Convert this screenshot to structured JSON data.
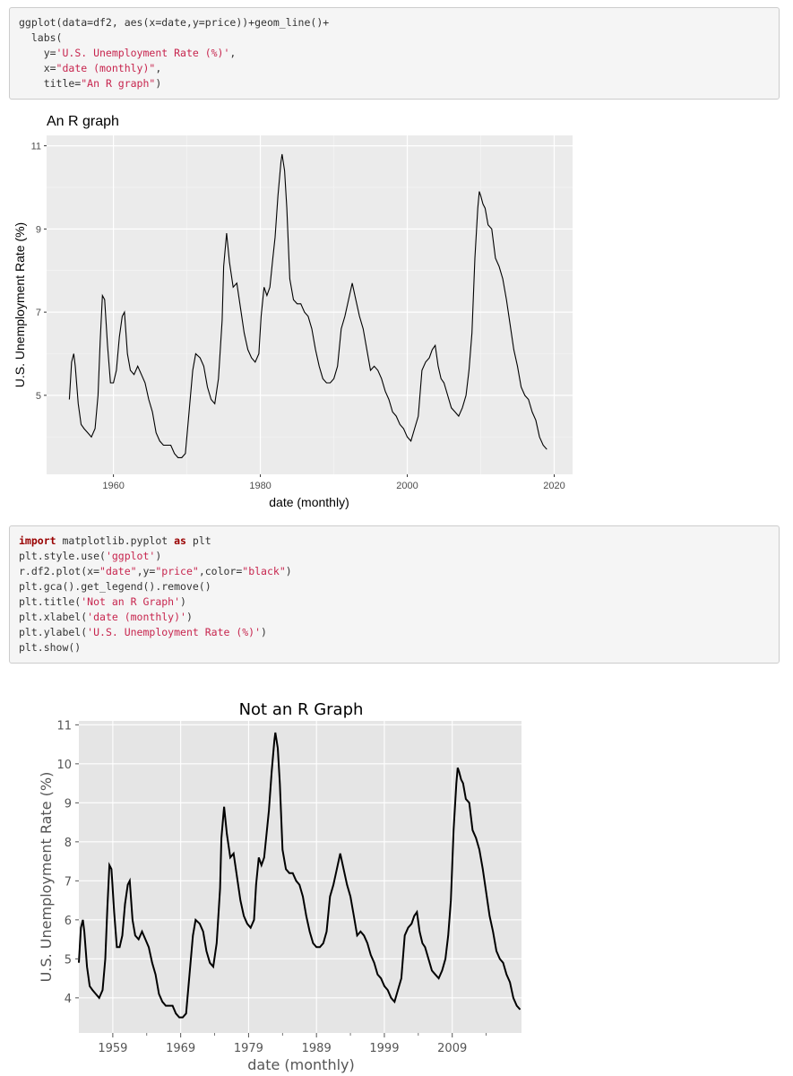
{
  "code_block_1": {
    "lines": [
      [
        {
          "t": "ggplot(data=df2, aes(x=date,y=price))+geom_line()+",
          "c": ""
        }
      ],
      [
        {
          "t": "  labs(",
          "c": ""
        }
      ],
      [
        {
          "t": "    y=",
          "c": ""
        },
        {
          "t": "'U.S. Unemployment Rate (%)'",
          "c": "str"
        },
        {
          "t": ",",
          "c": ""
        }
      ],
      [
        {
          "t": "    x=",
          "c": ""
        },
        {
          "t": "\"date (monthly)\"",
          "c": "str"
        },
        {
          "t": ",",
          "c": ""
        }
      ],
      [
        {
          "t": "    title=",
          "c": ""
        },
        {
          "t": "\"An R graph\"",
          "c": "str"
        },
        {
          "t": ")",
          "c": ""
        }
      ]
    ]
  },
  "code_block_2": {
    "lines": [
      [
        {
          "t": "import",
          "c": "kw"
        },
        {
          "t": " matplotlib.pyplot ",
          "c": ""
        },
        {
          "t": "as",
          "c": "kw"
        },
        {
          "t": " plt",
          "c": ""
        }
      ],
      [
        {
          "t": "plt.style.use(",
          "c": ""
        },
        {
          "t": "'ggplot'",
          "c": "str"
        },
        {
          "t": ")",
          "c": ""
        }
      ],
      [
        {
          "t": "r.df2.plot(x=",
          "c": ""
        },
        {
          "t": "\"date\"",
          "c": "str"
        },
        {
          "t": ",y=",
          "c": ""
        },
        {
          "t": "\"price\"",
          "c": "str"
        },
        {
          "t": ",color=",
          "c": ""
        },
        {
          "t": "\"black\"",
          "c": "str"
        },
        {
          "t": ")",
          "c": ""
        }
      ],
      [
        {
          "t": "plt.gca().get_legend().remove()",
          "c": ""
        }
      ],
      [
        {
          "t": "plt.title(",
          "c": ""
        },
        {
          "t": "'Not an R Graph'",
          "c": "str"
        },
        {
          "t": ")",
          "c": ""
        }
      ],
      [
        {
          "t": "plt.xlabel(",
          "c": ""
        },
        {
          "t": "'date (monthly)'",
          "c": "str"
        },
        {
          "t": ")",
          "c": ""
        }
      ],
      [
        {
          "t": "plt.ylabel(",
          "c": ""
        },
        {
          "t": "'U.S. Unemployment Rate (%)'",
          "c": "str"
        },
        {
          "t": ")",
          "c": ""
        }
      ],
      [
        {
          "t": "plt.show()",
          "c": ""
        }
      ]
    ]
  },
  "colors": {
    "panel_bg": "#ebebeb",
    "mpl_bg": "#e5e5e5",
    "line": "#000000",
    "grid": "#ffffff",
    "code_bg": "#f5f5f5",
    "string": "#c7254e",
    "keyword": "#990000"
  },
  "chart_data": [
    {
      "type": "line",
      "style": "ggplot2",
      "title": "An R graph",
      "xlabel": "date (monthly)",
      "ylabel": "U.S. Unemployment Rate (%)",
      "xlim": [
        1954.0,
        2019.2
      ],
      "ylim": [
        3.4,
        10.8
      ],
      "x_ticks": [
        1960,
        1980,
        2000,
        2020
      ],
      "x_tick_labels": [
        "1960",
        "1980",
        "2000",
        "2020"
      ],
      "y_ticks": [
        5,
        7,
        9,
        11
      ],
      "y_tick_labels": [
        "5",
        "7",
        "9",
        "11"
      ],
      "grid": true,
      "legend": "none"
    },
    {
      "type": "line",
      "style": "matplotlib ggplot",
      "title": "Not an R Graph",
      "xlabel": "date (monthly)",
      "ylabel": "U.S. Unemployment Rate (%)",
      "xlim": [
        1954.0,
        2019.2
      ],
      "ylim": [
        3.4,
        10.8
      ],
      "x_ticks": [
        1959,
        1969,
        1979,
        1989,
        1999,
        2009
      ],
      "x_tick_labels": [
        "1959",
        "1969",
        "1979",
        "1989",
        "1999",
        "2009"
      ],
      "y_ticks": [
        4,
        5,
        6,
        7,
        8,
        9,
        10,
        11
      ],
      "y_tick_labels": [
        "4",
        "5",
        "6",
        "7",
        "8",
        "9",
        "10",
        "11"
      ],
      "grid": true,
      "legend": "none"
    }
  ],
  "series": {
    "name": "price",
    "x": [
      1954.0,
      1954.3,
      1954.6,
      1954.8,
      1955.2,
      1955.6,
      1956.0,
      1956.5,
      1957.0,
      1957.5,
      1957.9,
      1958.2,
      1958.5,
      1958.8,
      1959.2,
      1959.6,
      1960.0,
      1960.4,
      1960.8,
      1961.2,
      1961.5,
      1961.9,
      1962.3,
      1962.8,
      1963.3,
      1963.8,
      1964.3,
      1964.8,
      1965.3,
      1965.8,
      1966.3,
      1966.8,
      1967.3,
      1967.8,
      1968.3,
      1968.8,
      1969.3,
      1969.8,
      1970.3,
      1970.8,
      1971.2,
      1971.8,
      1972.3,
      1972.8,
      1973.3,
      1973.8,
      1974.3,
      1974.8,
      1975.0,
      1975.4,
      1975.8,
      1976.3,
      1976.8,
      1977.3,
      1977.8,
      1978.3,
      1978.8,
      1979.3,
      1979.8,
      1980.1,
      1980.5,
      1980.9,
      1981.3,
      1981.7,
      1982.0,
      1982.4,
      1982.8,
      1982.95,
      1983.3,
      1983.6,
      1984.0,
      1984.5,
      1985.0,
      1985.5,
      1986.0,
      1986.5,
      1987.0,
      1987.5,
      1988.0,
      1988.5,
      1989.0,
      1989.5,
      1990.0,
      1990.5,
      1991.0,
      1991.5,
      1992.0,
      1992.5,
      1993.0,
      1993.5,
      1994.0,
      1994.5,
      1995.0,
      1995.5,
      1996.0,
      1996.5,
      1997.0,
      1997.5,
      1998.0,
      1998.5,
      1999.0,
      1999.5,
      2000.0,
      2000.5,
      2001.0,
      2001.5,
      2002.0,
      2002.5,
      2003.0,
      2003.4,
      2003.8,
      2004.2,
      2004.6,
      2005.0,
      2005.5,
      2006.0,
      2006.5,
      2007.0,
      2007.5,
      2008.0,
      2008.4,
      2008.8,
      2009.2,
      2009.6,
      2009.8,
      2010.0,
      2010.3,
      2010.6,
      2011.0,
      2011.5,
      2012.0,
      2012.5,
      2013.0,
      2013.5,
      2014.0,
      2014.5,
      2015.0,
      2015.5,
      2016.0,
      2016.5,
      2017.0,
      2017.5,
      2018.0,
      2018.5,
      2019.0
    ],
    "y": [
      4.9,
      5.8,
      6.0,
      5.7,
      4.8,
      4.3,
      4.2,
      4.1,
      4.0,
      4.2,
      5.0,
      6.3,
      7.4,
      7.3,
      6.2,
      5.3,
      5.3,
      5.6,
      6.4,
      6.9,
      7.0,
      6.0,
      5.6,
      5.5,
      5.7,
      5.5,
      5.3,
      4.9,
      4.6,
      4.1,
      3.9,
      3.8,
      3.8,
      3.8,
      3.6,
      3.5,
      3.5,
      3.6,
      4.6,
      5.6,
      6.0,
      5.9,
      5.7,
      5.2,
      4.9,
      4.8,
      5.4,
      6.8,
      8.1,
      8.9,
      8.2,
      7.6,
      7.7,
      7.1,
      6.5,
      6.1,
      5.9,
      5.8,
      6.0,
      6.9,
      7.6,
      7.4,
      7.6,
      8.3,
      8.8,
      9.8,
      10.6,
      10.8,
      10.4,
      9.5,
      7.8,
      7.3,
      7.2,
      7.2,
      7.0,
      6.9,
      6.6,
      6.1,
      5.7,
      5.4,
      5.3,
      5.3,
      5.4,
      5.7,
      6.6,
      6.9,
      7.3,
      7.7,
      7.3,
      6.9,
      6.6,
      6.1,
      5.6,
      5.7,
      5.6,
      5.4,
      5.1,
      4.9,
      4.6,
      4.5,
      4.3,
      4.2,
      4.0,
      3.9,
      4.2,
      4.5,
      5.6,
      5.8,
      5.9,
      6.1,
      6.2,
      5.7,
      5.4,
      5.3,
      5.0,
      4.7,
      4.6,
      4.5,
      4.7,
      5.0,
      5.6,
      6.5,
      8.3,
      9.5,
      9.9,
      9.8,
      9.6,
      9.5,
      9.1,
      9.0,
      8.3,
      8.1,
      7.8,
      7.3,
      6.7,
      6.1,
      5.7,
      5.2,
      5.0,
      4.9,
      4.6,
      4.4,
      4.0,
      3.8,
      3.7
    ]
  }
}
